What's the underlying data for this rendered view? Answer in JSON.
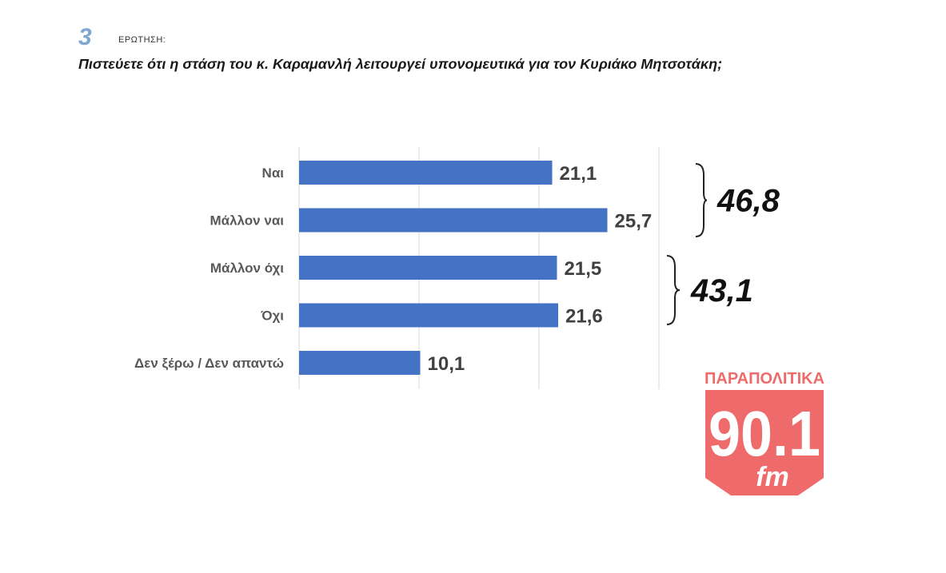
{
  "header": {
    "question_number": "3",
    "question_word": "ΕΡΩΤΗΣΗ:",
    "question_text": "Πιστεύετε ότι η στάση του κ. Καραμανλή λειτουργεί υπονομευτικά για τον Κυριάκο Μητσοτάκη;"
  },
  "chart_data": {
    "type": "bar",
    "orientation": "horizontal",
    "categories": [
      "Ναι",
      "Μάλλον ναι",
      "Μάλλον όχι",
      "Όχι",
      "Δεν ξέρω / Δεν απαντώ"
    ],
    "values": [
      21.1,
      25.7,
      21.5,
      21.6,
      10.1
    ],
    "value_labels": [
      "21,1",
      "25,7",
      "21,5",
      "21,6",
      "10,1"
    ],
    "xlim": [
      0,
      30
    ],
    "grid": true,
    "bar_color": "#4472c4",
    "group_totals": [
      {
        "label": "46,8",
        "categories": [
          "Ναι",
          "Μάλλον ναι"
        ]
      },
      {
        "label": "43,1",
        "categories": [
          "Μάλλον όχι",
          "Όχι"
        ]
      }
    ]
  },
  "logo": {
    "top_text": "ΠΑΡΑΠΟΛΙΤΙΚΑ",
    "main_text": "90.1",
    "sub_text": "fm",
    "color": "#ef6b6b"
  }
}
